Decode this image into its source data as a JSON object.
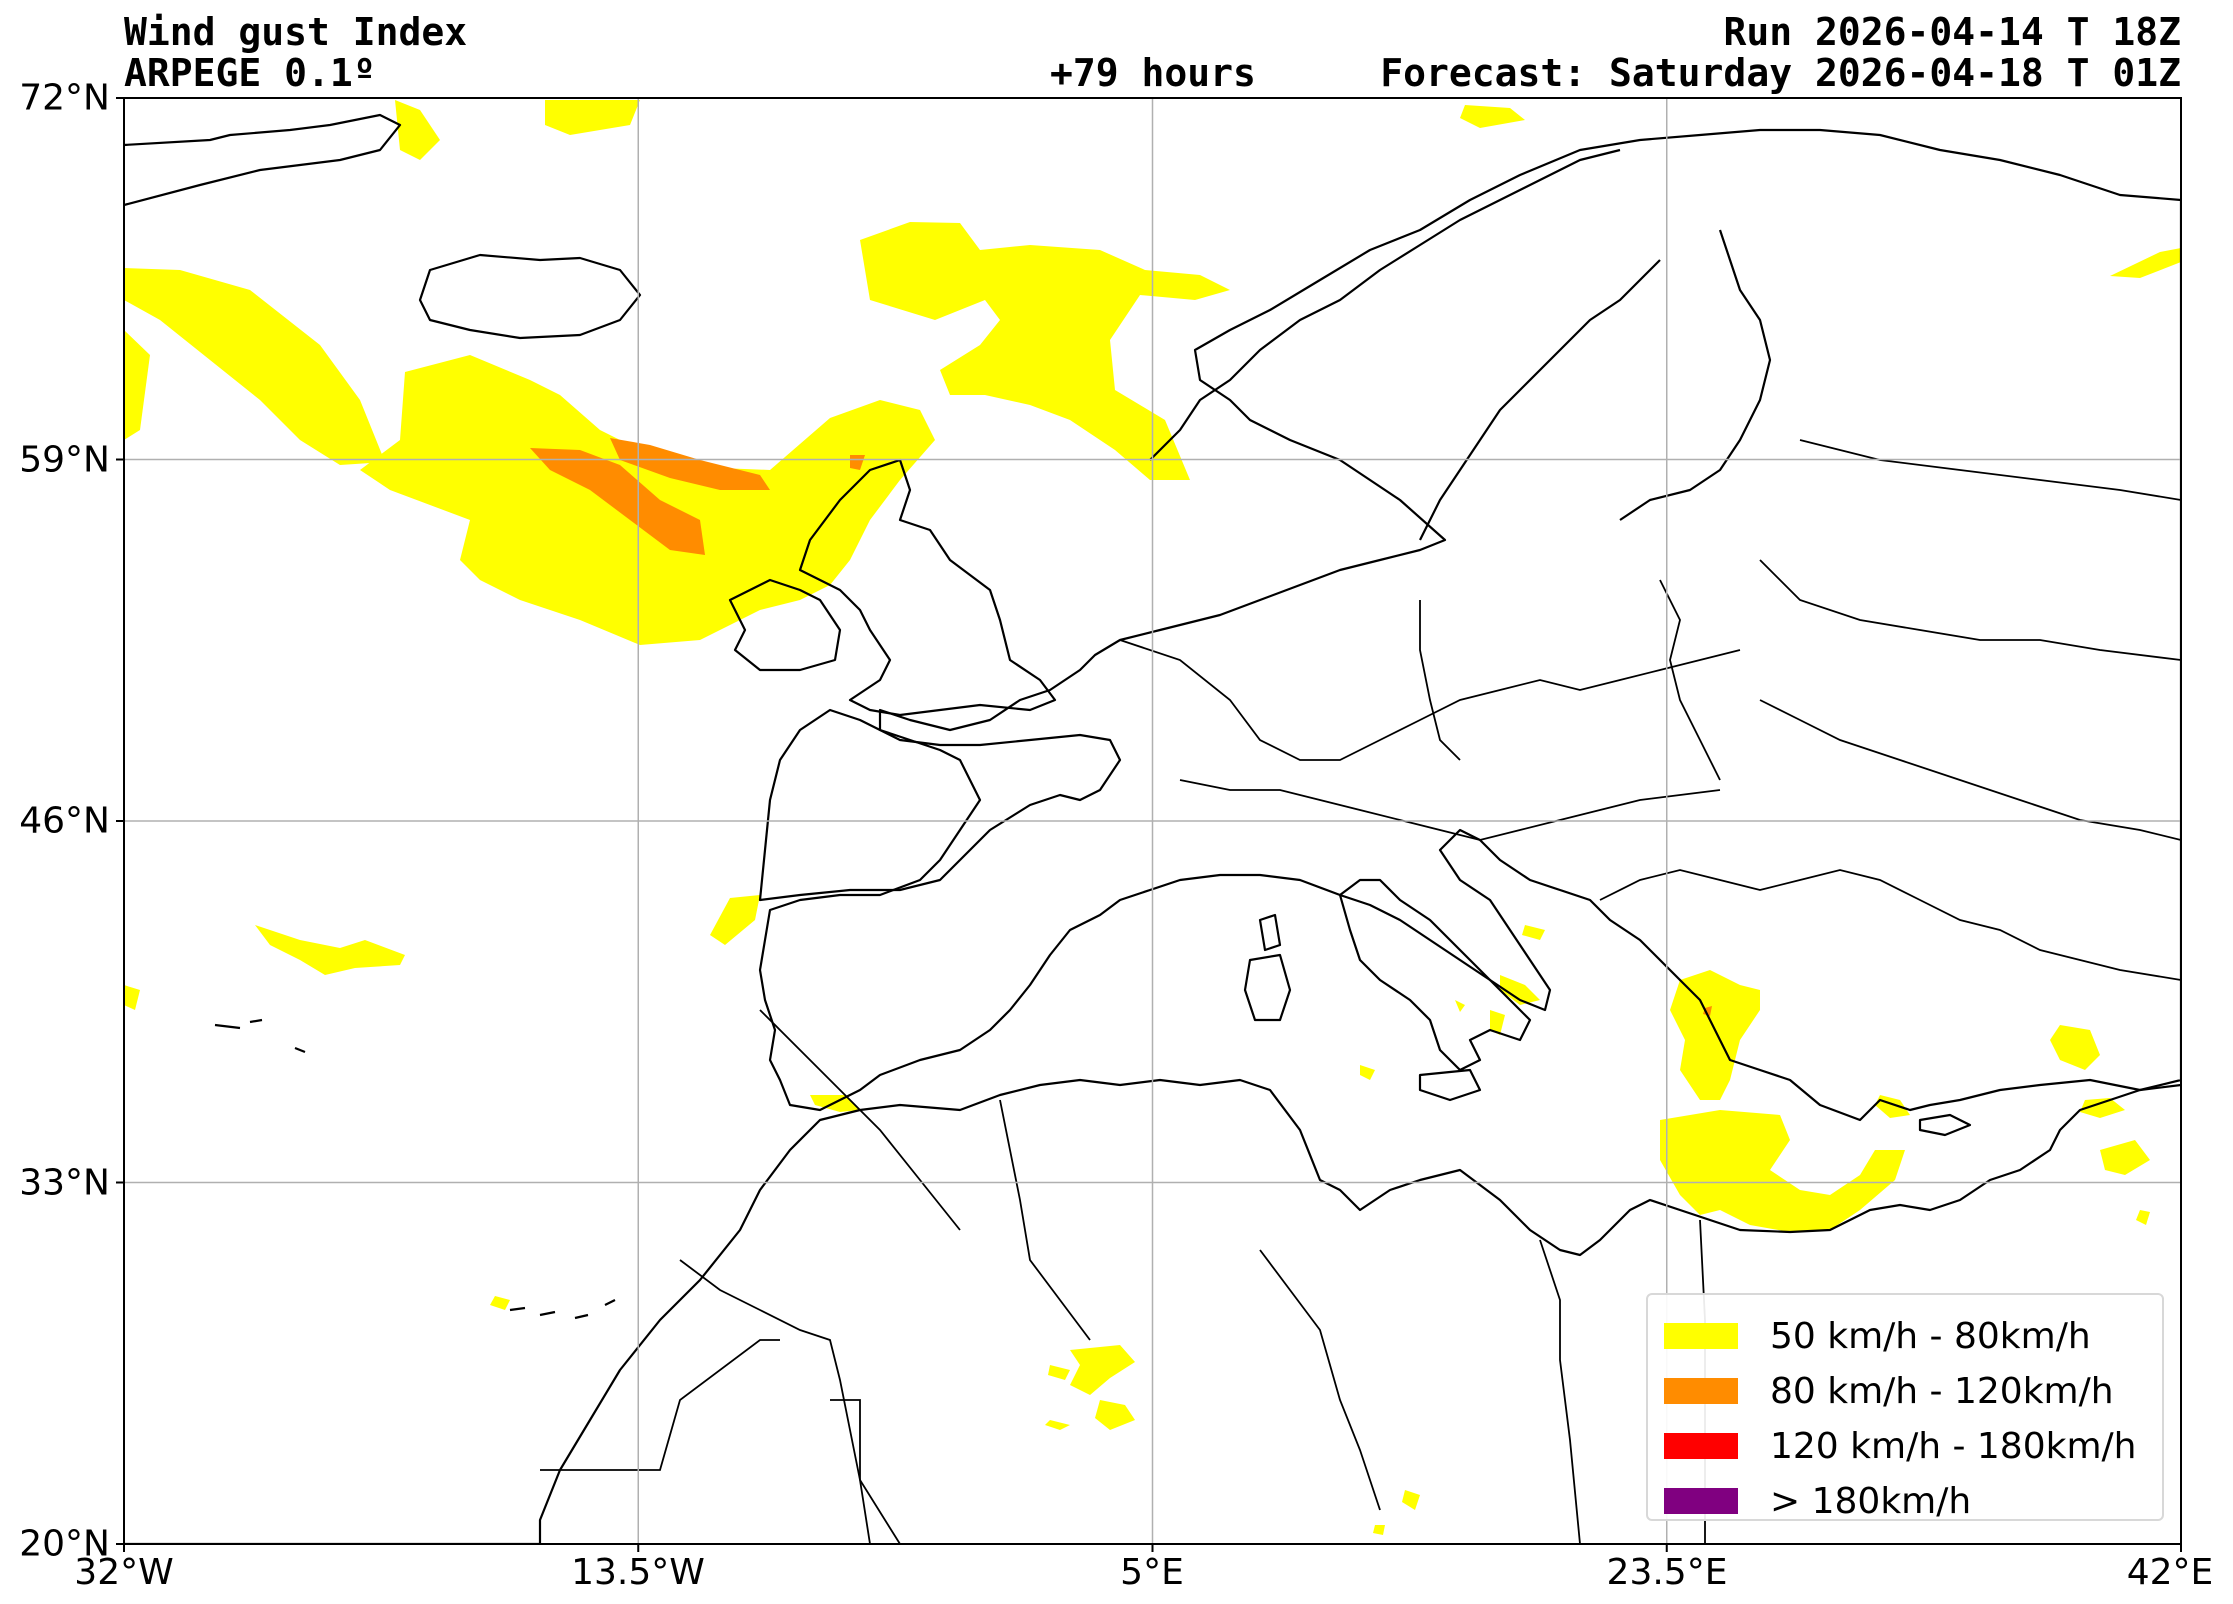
{
  "header": {
    "title": "Wind gust Index",
    "model": "ARPEGE 0.1º",
    "run": "Run 2026-04-14 T 18Z",
    "lead": "+79 hours",
    "forecast": "Forecast: Saturday 2026-04-18 T 01Z"
  },
  "axes": {
    "y_ticks": [
      "72°N",
      "59°N",
      "46°N",
      "33°N",
      "20°N"
    ],
    "x_ticks": [
      "32°W",
      "13.5°W",
      "5°E",
      "23.5°E",
      "42°E"
    ],
    "lat_range": [
      20,
      72
    ],
    "lon_range": [
      -32,
      42
    ],
    "grid": true
  },
  "legend": {
    "placement": "lower-right",
    "items": [
      {
        "label": "50 km/h - 80km/h",
        "color": "#ffff00"
      },
      {
        "label": "80 km/h - 120km/h",
        "color": "#ff8c00"
      },
      {
        "label": "120 km/h - 180km/h",
        "color": "#ff0000"
      },
      {
        "label": "> 180km/h",
        "color": "#800080"
      }
    ]
  }
}
